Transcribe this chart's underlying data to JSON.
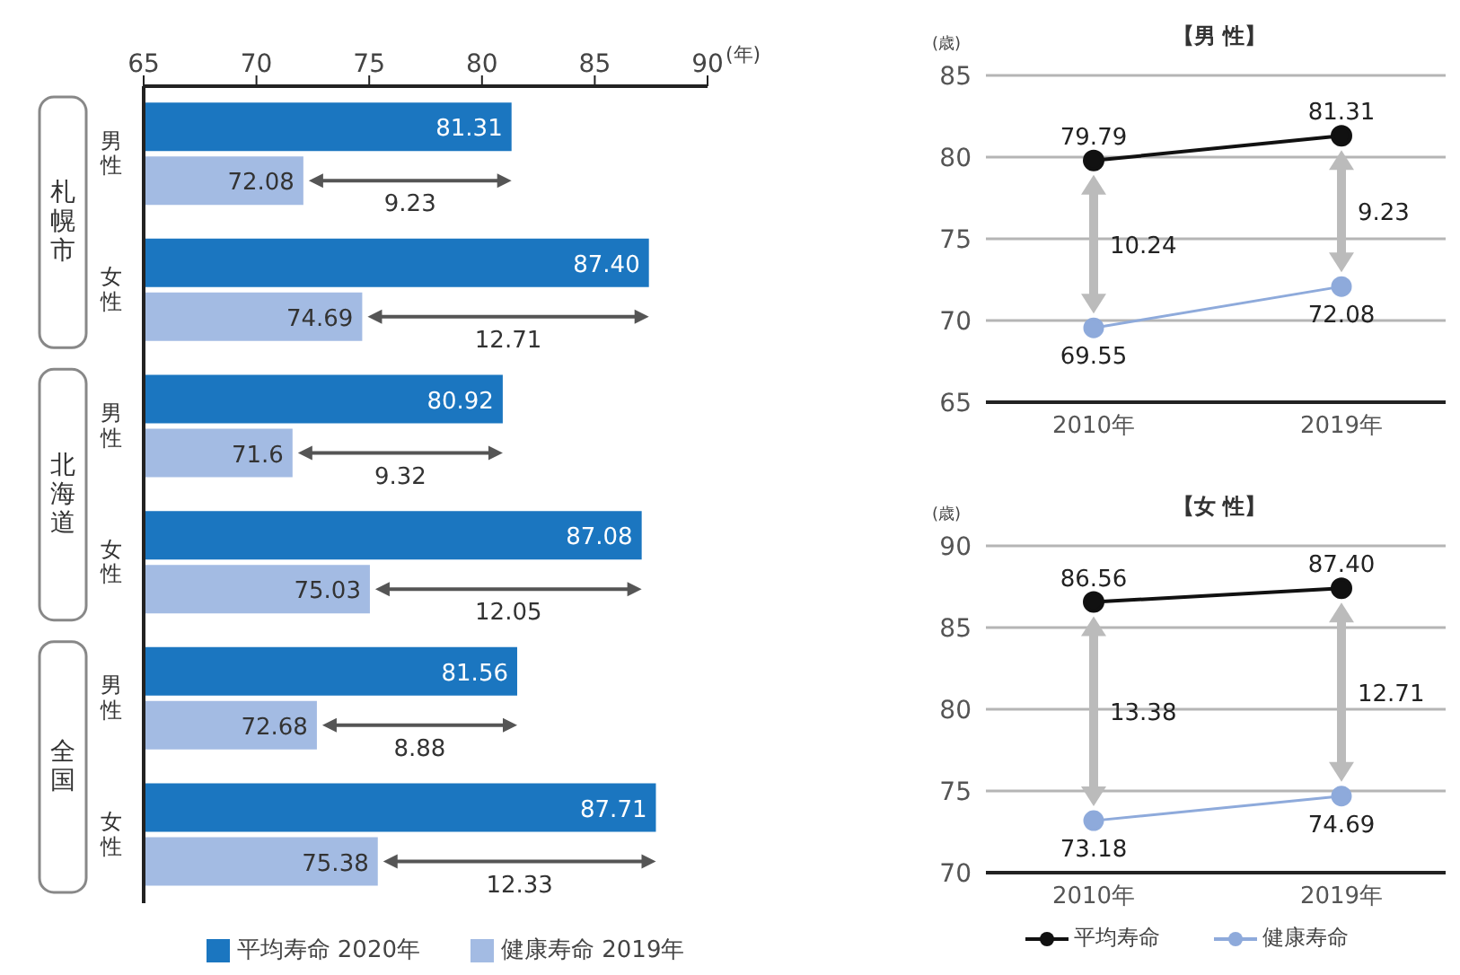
{
  "chart_data": [
    {
      "type": "bar",
      "orientation": "horizontal",
      "xlabel": "(年)",
      "categories": [
        "男性",
        "女性",
        "男性",
        "女性",
        "男性",
        "女性"
      ],
      "series": [
        {
          "name": "平均寿命 2020年",
          "color": "#1b76c0",
          "values": [
            81.31,
            87.4,
            80.92,
            87.08,
            81.56,
            87.71
          ],
          "value_labels": [
            "81.31",
            "87.40",
            "80.92",
            "87.08",
            "81.56",
            "87.71"
          ]
        },
        {
          "name": "健康寿命 2019年",
          "color": "#a3bbe3",
          "values": [
            72.08,
            74.69,
            71.6,
            75.03,
            72.68,
            75.38
          ],
          "value_labels": [
            "72.08",
            "74.69",
            "71.6",
            "75.03",
            "72.68",
            "75.38"
          ]
        }
      ],
      "xlim": [
        65,
        90
      ],
      "xticks": [
        65,
        70,
        75,
        80,
        85,
        90
      ],
      "legend": "bottom",
      "annotations": [
        "札幌市",
        "北海道",
        "全国",
        "9.23",
        "12.71",
        "9.32",
        "12.05",
        "8.88",
        "12.33"
      ]
    },
    {
      "type": "line",
      "title": "【男 性】",
      "ylabel": "(歳)",
      "categories": [
        "2010年",
        "2019年"
      ],
      "series": [
        {
          "color": "#111111",
          "values": [
            79.79,
            81.31
          ],
          "value_labels": [
            "79.79",
            "81.31"
          ]
        },
        {
          "color": "#8eaadb",
          "values": [
            69.55,
            72.08
          ],
          "value_labels": [
            "69.55",
            "72.08"
          ]
        }
      ],
      "ylim": [
        65,
        85
      ],
      "yticks": [
        65,
        70,
        75,
        80,
        85
      ],
      "grid": "y",
      "marker": "circle",
      "annotations": [
        "10.24",
        "9.23"
      ]
    },
    {
      "type": "line",
      "title": "【女 性】",
      "ylabel": "(歳)",
      "categories": [
        "2010年",
        "2019年"
      ],
      "series": [
        {
          "name": "平均寿命",
          "color": "#111111",
          "values": [
            86.56,
            87.4
          ],
          "value_labels": [
            "86.56",
            "87.40"
          ]
        },
        {
          "name": "健康寿命",
          "color": "#8eaadb",
          "values": [
            73.18,
            74.69
          ],
          "value_labels": [
            "73.18",
            "74.69"
          ]
        }
      ],
      "ylim": [
        70,
        90
      ],
      "yticks": [
        70,
        75,
        80,
        85,
        90
      ],
      "grid": "y",
      "marker": "circle",
      "legend": "bottom",
      "annotations": [
        "13.38",
        "12.71"
      ]
    }
  ]
}
